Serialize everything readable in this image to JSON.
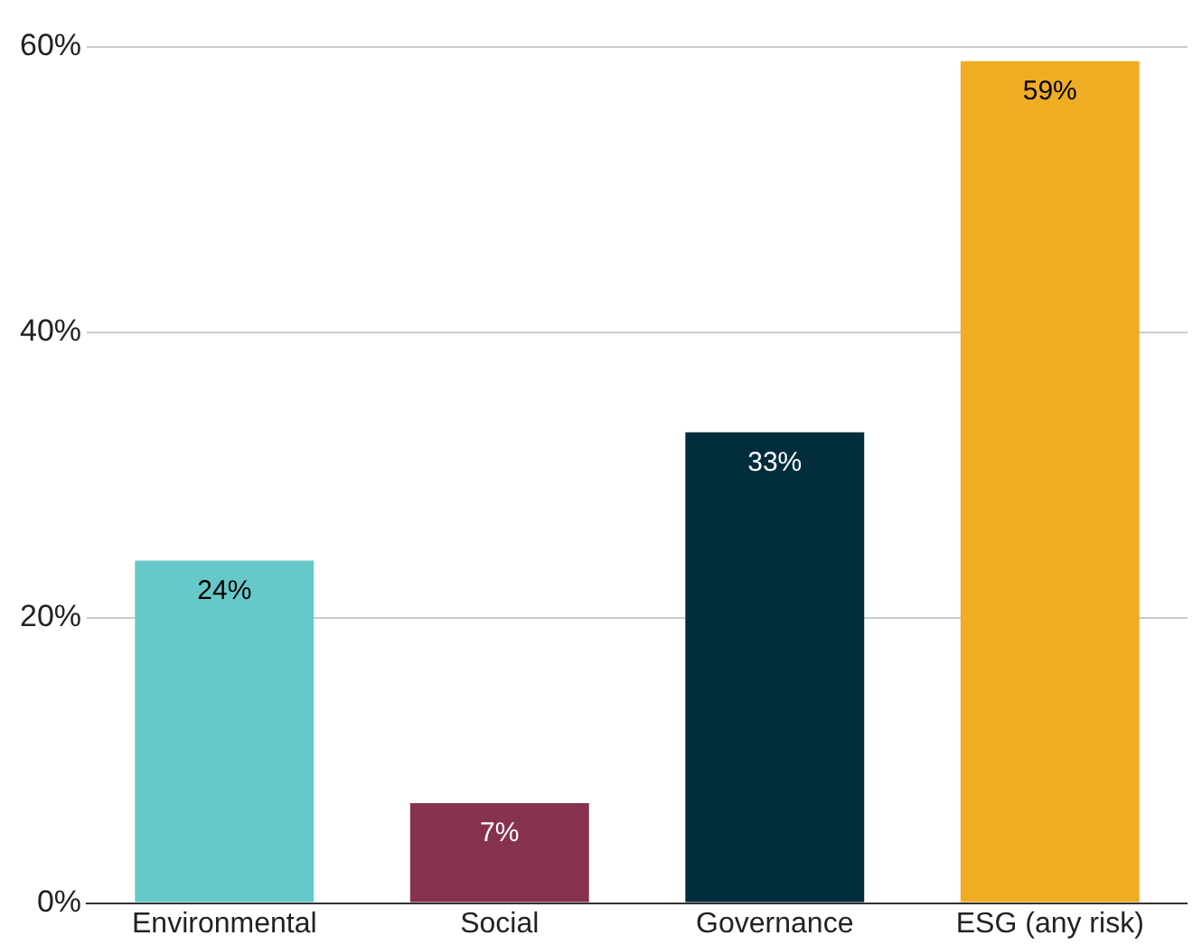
{
  "chart_data": {
    "type": "bar",
    "categories": [
      "Environmental",
      "Social",
      "Governance",
      "ESG (any risk)"
    ],
    "values": [
      24,
      7,
      33,
      59
    ],
    "colors": [
      "#66c8c8",
      "#87324d",
      "#022d3c",
      "#efad24"
    ],
    "value_labels": [
      "24%",
      "7%",
      "33%",
      "59%"
    ],
    "ylim": [
      0,
      60
    ],
    "yticks": [
      {
        "value": 0,
        "label": "0%"
      },
      {
        "value": 20,
        "label": "20%"
      },
      {
        "value": 40,
        "label": "40%"
      },
      {
        "value": 60,
        "label": "60%"
      }
    ],
    "grid": "y",
    "legend": false
  }
}
